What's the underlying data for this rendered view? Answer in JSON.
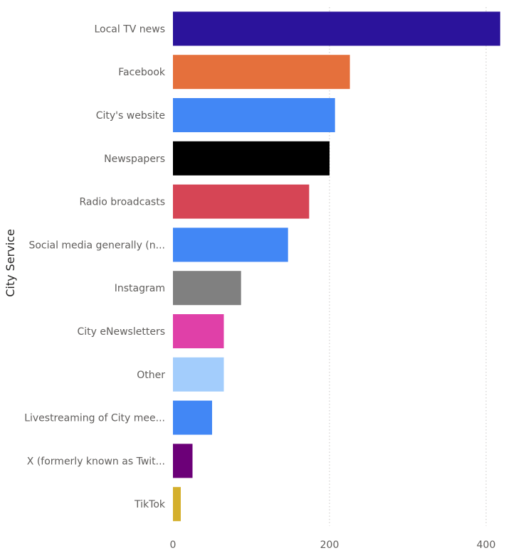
{
  "chart_data": {
    "type": "bar",
    "orientation": "horizontal",
    "ylabel": "City Service",
    "xlabel": "",
    "xlim": [
      0,
      420
    ],
    "xticks": [
      0,
      200,
      400
    ],
    "grid": true,
    "categories": [
      "Local TV news",
      "Facebook",
      "City's website",
      "Newspapers",
      "Radio broadcasts",
      "Social media generally (n...",
      "Instagram",
      "City eNewsletters",
      "Other",
      "Livestreaming of City mee...",
      "X (formerly known as Twit...",
      "TikTok"
    ],
    "values": [
      418,
      226,
      207,
      200,
      174,
      147,
      87,
      65,
      65,
      50,
      25,
      10
    ],
    "colors": [
      "#2b139b",
      "#e5703c",
      "#4287f5",
      "#000000",
      "#d64555",
      "#4287f5",
      "#808080",
      "#e040a8",
      "#a3cdfc",
      "#4287f5",
      "#6c0078",
      "#d4af2c"
    ]
  }
}
